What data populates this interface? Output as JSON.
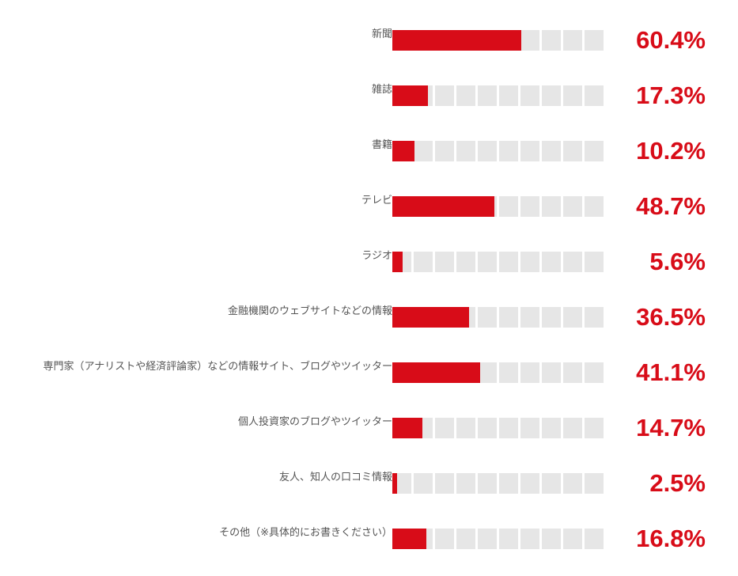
{
  "colors": {
    "bar_fill": "#d80c18",
    "bar_empty": "#e6e6e6",
    "value_text": "#d80c18",
    "label_text": "#555555"
  },
  "chart_data": {
    "type": "bar",
    "orientation": "horizontal",
    "unit": "%",
    "categories": [
      "新聞",
      "雑誌",
      "書籍",
      "テレビ",
      "ラジオ",
      "金融機関のウェブサイトなどの情報",
      "専門家（アナリストや経済評論家）などの情報サイト、ブログやツイッター",
      "個人投資家のブログやツイッター",
      "友人、知人の口コミ情報",
      "その他（※具体的にお書きください）"
    ],
    "values": [
      60.4,
      17.3,
      10.2,
      48.7,
      5.6,
      36.5,
      41.1,
      14.7,
      2.5,
      16.8
    ],
    "value_labels": [
      "60.4%",
      "17.3%",
      "10.2%",
      "48.7%",
      "5.6%",
      "36.5%",
      "41.1%",
      "14.7%",
      "2.5%",
      "16.8%"
    ],
    "xlim": [
      0,
      100
    ],
    "segments": 10,
    "title": "",
    "xlabel": "",
    "ylabel": "",
    "legend": "none",
    "grid": false
  }
}
